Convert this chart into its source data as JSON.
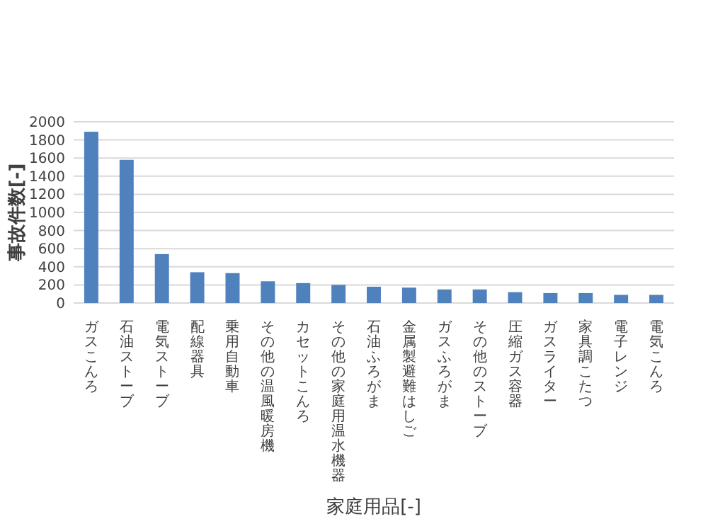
{
  "chart_data": {
    "type": "bar",
    "xlabel": "家庭用品[-]",
    "ylabel": "事故件数[-]",
    "categories": [
      "ガスこんろ",
      "石油ストーブ",
      "電気ストーブ",
      "配線器具",
      "乗用自動車",
      "その他の温風暖房機",
      "カセットこんろ",
      "その他の家庭用温水機器",
      "石油ふろがま",
      "金属製避難はしご",
      "ガスふろがま",
      "その他のストーブ",
      "圧縮ガス容器",
      "ガスライター",
      "家具調こたつ",
      "電子レンジ",
      "電気こんろ"
    ],
    "values": [
      1890,
      1580,
      540,
      340,
      330,
      240,
      220,
      200,
      180,
      170,
      150,
      150,
      120,
      110,
      110,
      90,
      90
    ],
    "color": "#4f81bd",
    "ylim": [
      0,
      2000
    ],
    "yticks": [
      0,
      200,
      400,
      600,
      800,
      1000,
      1200,
      1400,
      1600,
      1800,
      2000
    ],
    "grid": "y"
  }
}
